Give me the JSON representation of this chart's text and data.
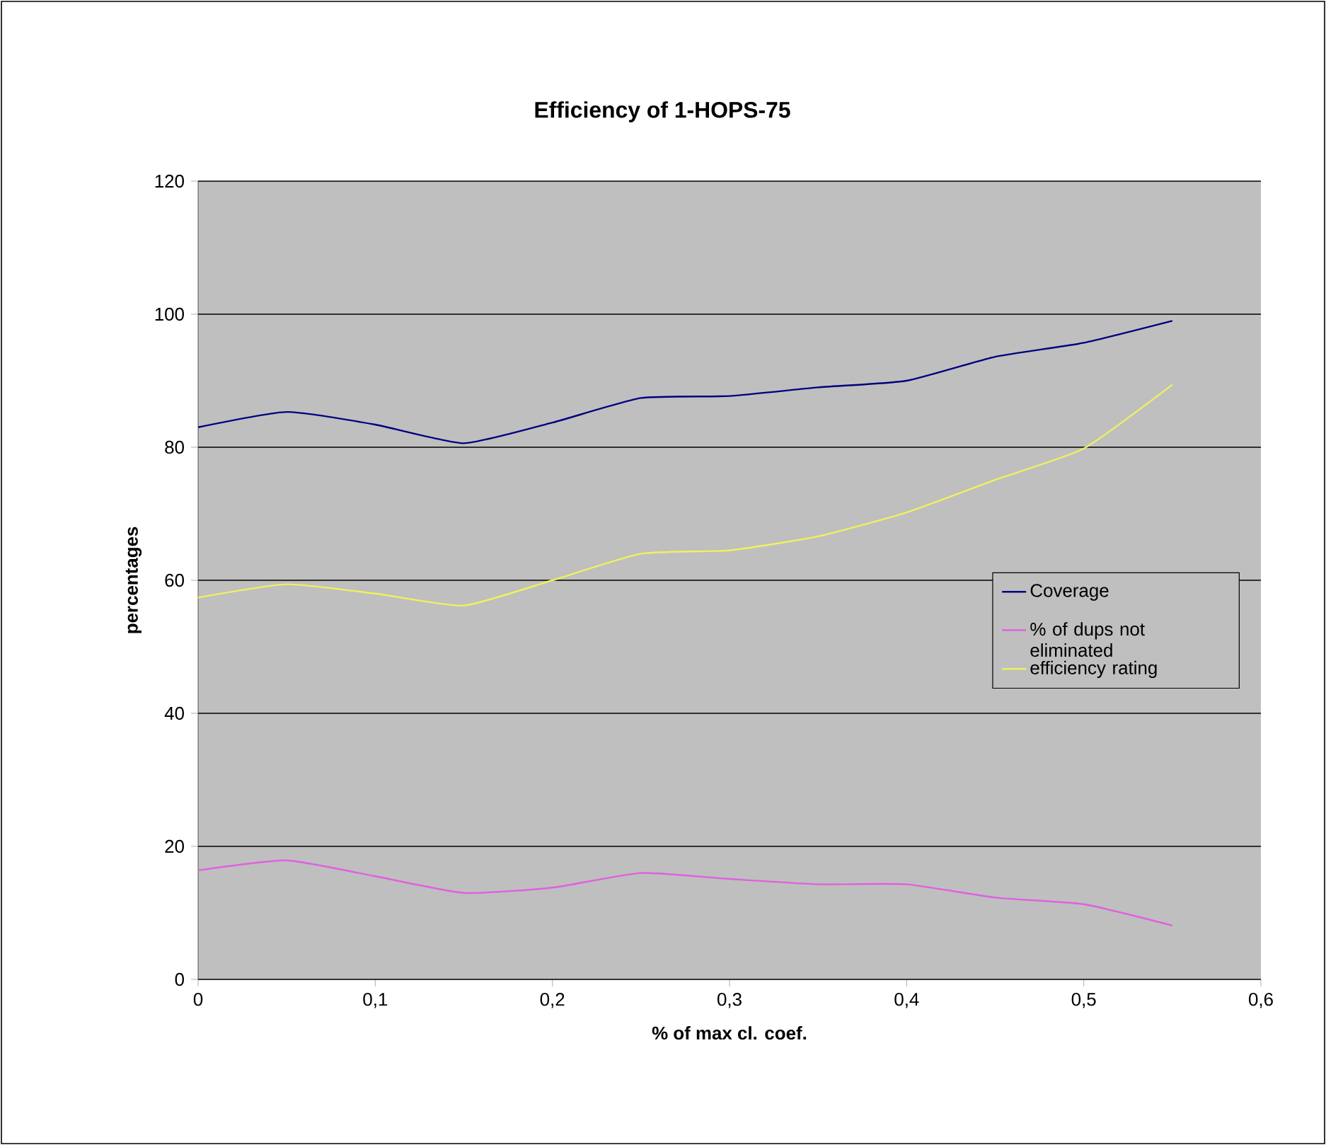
{
  "chart_data": {
    "type": "line",
    "title": "Efficiency of 1-HOPS-75",
    "xlabel": "% of max cl. coef.",
    "ylabel": "percentages",
    "x": [
      0,
      0.05,
      0.1,
      0.15,
      0.2,
      0.25,
      0.3,
      0.35,
      0.4,
      0.45,
      0.5,
      0.55
    ],
    "series": [
      {
        "name": "Coverage",
        "color": "#000080",
        "values": [
          83,
          85.3,
          83.4,
          80.6,
          83.7,
          87.4,
          87.7,
          89,
          90,
          93.6,
          95.7,
          99
        ]
      },
      {
        "name": "% of dups not eliminated",
        "color": "#e060e0",
        "values": [
          16.4,
          17.9,
          15.5,
          13,
          13.8,
          16,
          15.1,
          14.3,
          14.3,
          12.3,
          11.3,
          8.1
        ]
      },
      {
        "name": "efficiency rating",
        "color": "#f0f060",
        "values": [
          57.4,
          59.4,
          58,
          56.2,
          60,
          64,
          64.5,
          66.6,
          70.2,
          75.1,
          79.8,
          89.4
        ]
      }
    ],
    "xlim": [
      0,
      0.6
    ],
    "ylim": [
      0,
      120
    ],
    "xticks": [
      0,
      {
        "value": 0.1,
        "label": "0,1"
      },
      {
        "value": 0.2,
        "label": "0,2"
      },
      {
        "value": 0.3,
        "label": "0,3"
      },
      {
        "value": 0.4,
        "label": "0,4"
      },
      {
        "value": 0.5,
        "label": "0,5"
      },
      {
        "value": 0.6,
        "label": "0,6"
      }
    ],
    "yticks": [
      0,
      20,
      40,
      60,
      80,
      100,
      120
    ],
    "grid": "y",
    "legend": "right",
    "marker": "none",
    "line_style": "solid"
  }
}
